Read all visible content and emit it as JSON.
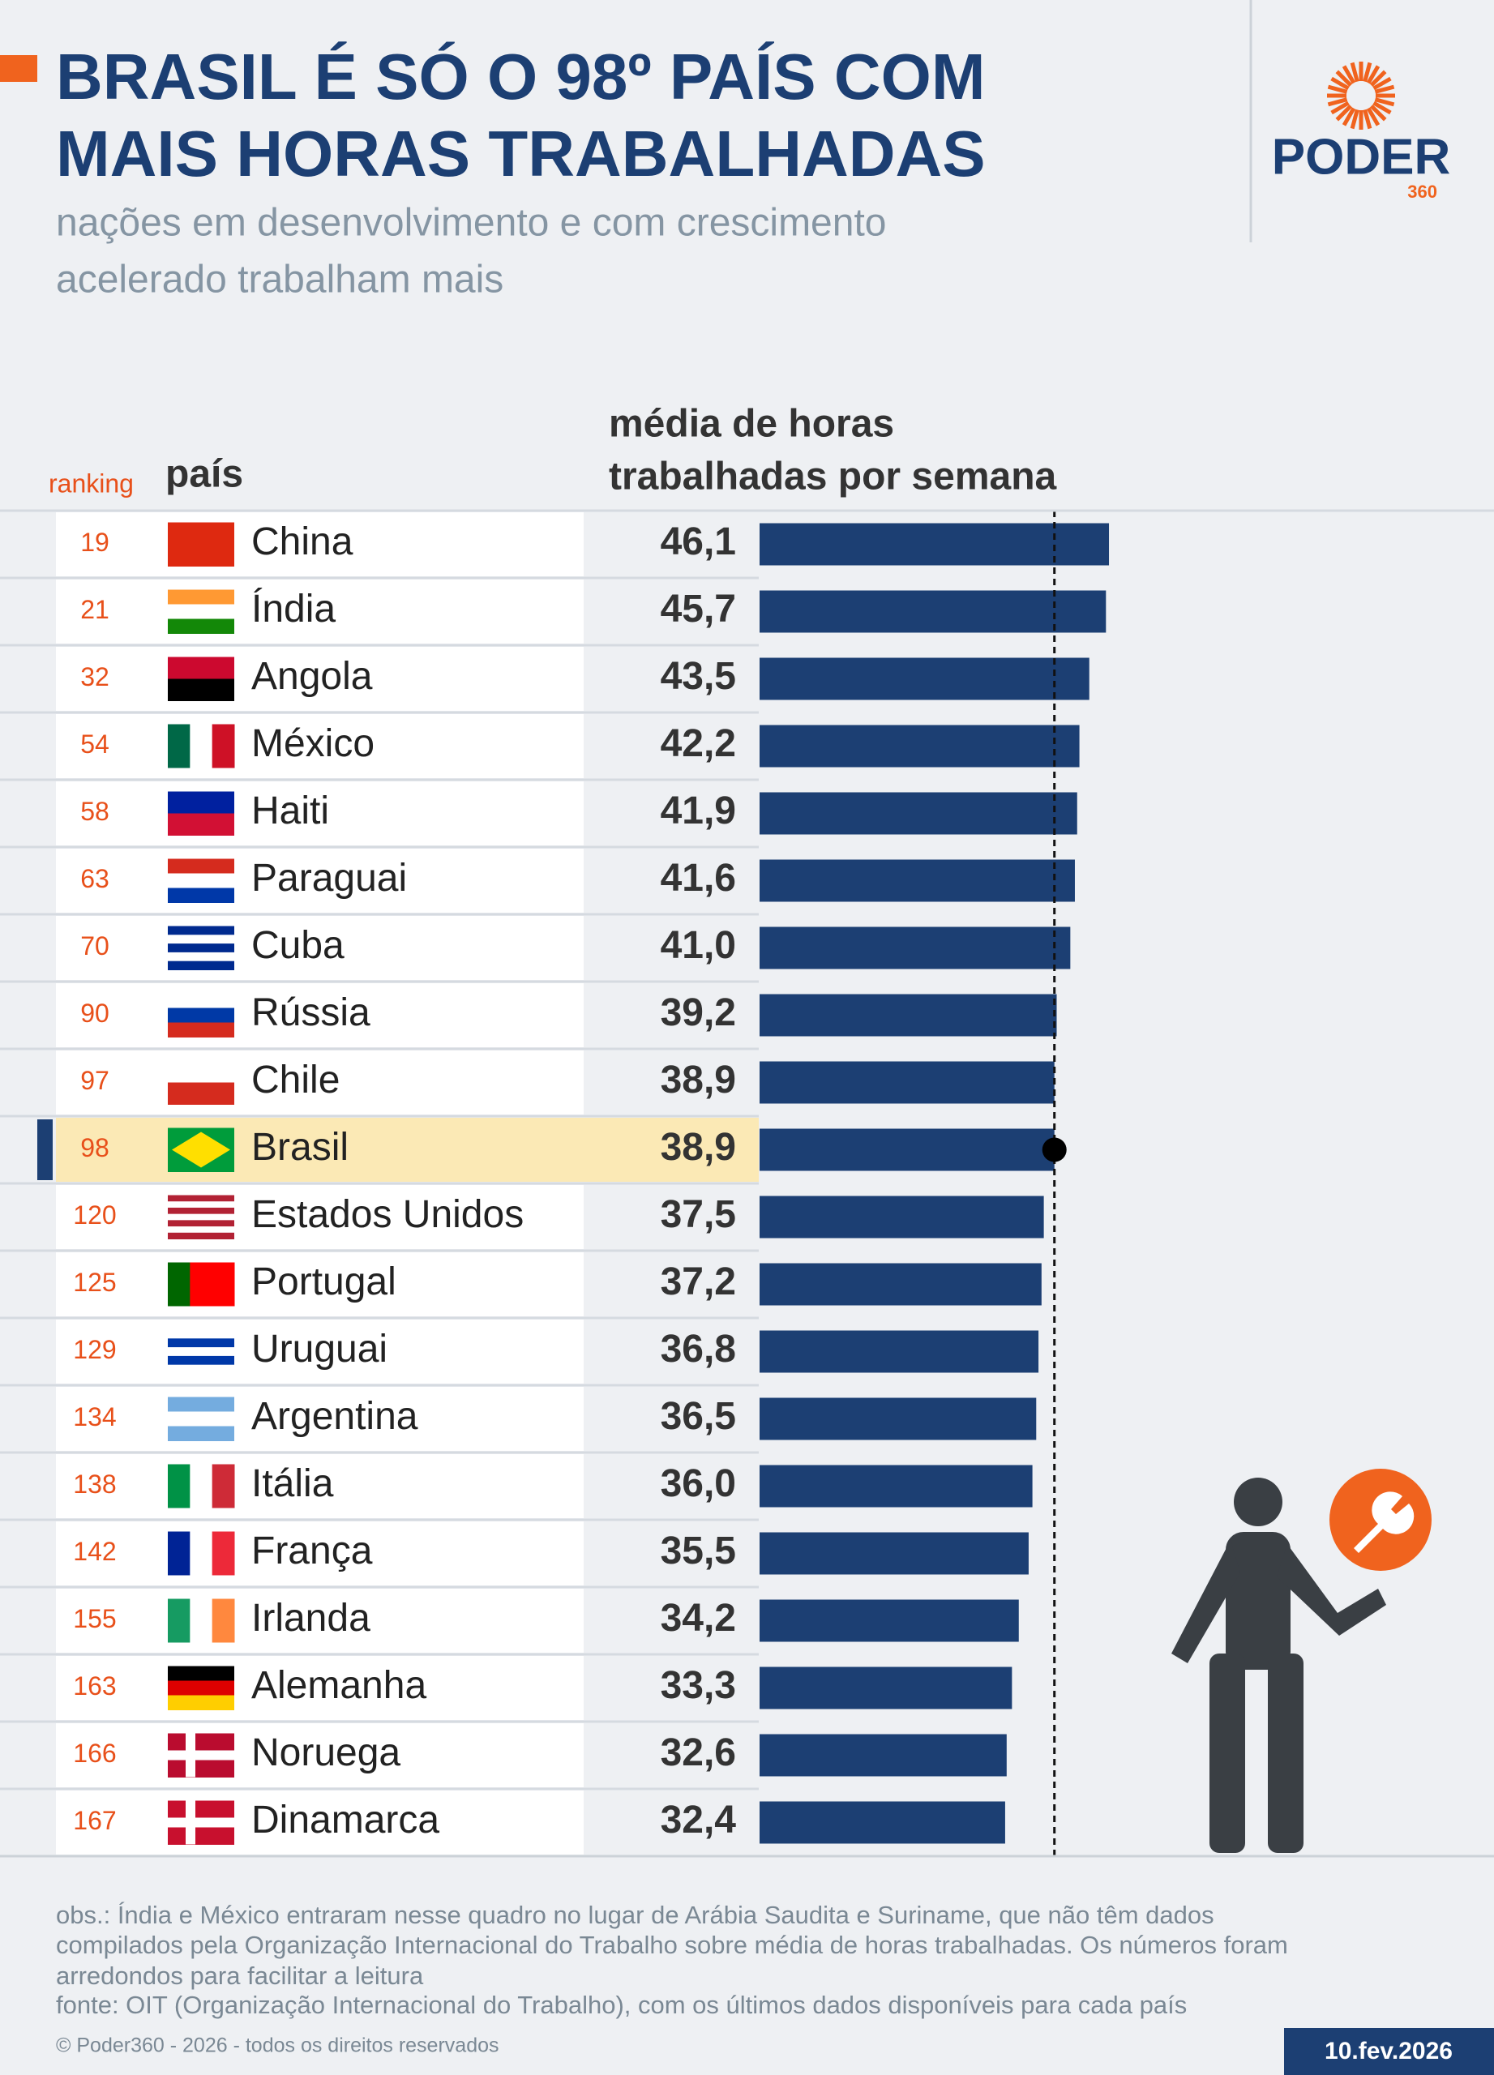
{
  "chart_data": {
    "type": "bar",
    "title": [
      "BRASIL É SÓ O 98º PAÍS COM",
      "MAIS HORAS TRABALHADAS"
    ],
    "subtitle": [
      "nações em desenvolvimento e com crescimento",
      "acelerado trabalham mais"
    ],
    "rank_header": "ranking",
    "category_header": "país",
    "value_header": [
      "média de horas",
      "trabalhadas por semana"
    ],
    "rankings": [
      19,
      21,
      32,
      54,
      58,
      63,
      70,
      90,
      97,
      98,
      120,
      125,
      129,
      134,
      138,
      142,
      155,
      163,
      166,
      167
    ],
    "categories": [
      "China",
      "Índia",
      "Angola",
      "México",
      "Haiti",
      "Paraguai",
      "Cuba",
      "Rússia",
      "Chile",
      "Brasil",
      "Estados Unidos",
      "Portugal",
      "Uruguai",
      "Argentina",
      "Itália",
      "França",
      "Irlanda",
      "Alemanha",
      "Noruega",
      "Dinamarca"
    ],
    "values": [
      46.1,
      45.7,
      43.5,
      42.2,
      41.9,
      41.6,
      41.0,
      39.2,
      38.9,
      38.9,
      37.5,
      37.2,
      36.8,
      36.5,
      36.0,
      35.5,
      34.2,
      33.3,
      32.6,
      32.4
    ],
    "value_labels": [
      "46,1",
      "45,7",
      "43,5",
      "42,2",
      "41,9",
      "41,6",
      "41,0",
      "39,2",
      "38,9",
      "38,9",
      "37,5",
      "37,2",
      "36,8",
      "36,5",
      "36,0",
      "35,5",
      "34,2",
      "33,3",
      "32,6",
      "32,4"
    ],
    "color": "#1c3f73",
    "highlight": "Brasil",
    "highlight_color": "#fbe9b5",
    "notes": [
      "obs.: Índia e México entraram nesse quadro no lugar de Arábia Saudita e Suriname, que não têm dados",
      "compilados pela Organização Internacional do Trabalho sobre média de horas trabalhadas. Os números foram",
      "arredondos para facilitar a leitura",
      "fonte: OIT (Organização Internacional do Trabalho), com os últimos dados disponíveis para cada país"
    ],
    "brand": {
      "name": "PODER",
      "suffix": "360"
    },
    "copyright": "© Poder360 - 2026 - todos os direitos reservados",
    "date": "10.fev.2026"
  }
}
